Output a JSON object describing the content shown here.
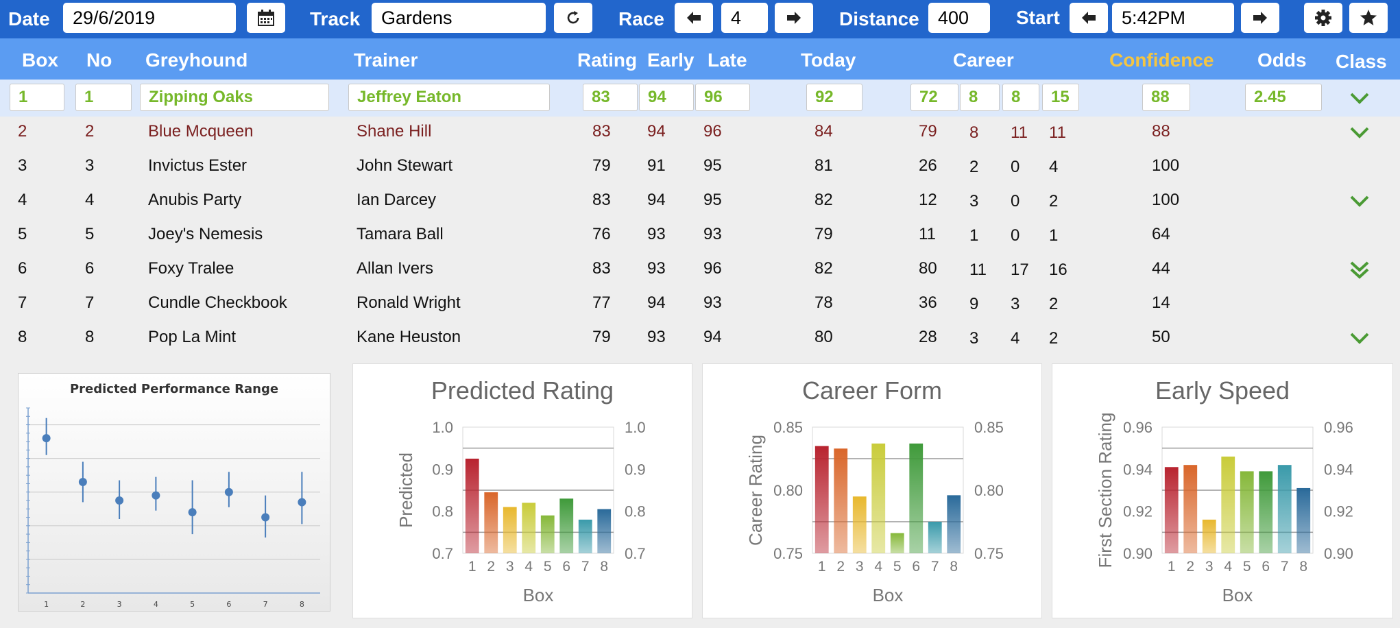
{
  "toolbar": {
    "date_label": "Date",
    "date_value": "29/6/2019",
    "track_label": "Track",
    "track_value": "Gardens",
    "race_label": "Race",
    "race_value": "4",
    "distance_label": "Distance",
    "distance_value": "400",
    "start_label": "Start",
    "start_value": "5:42PM",
    "icons": [
      "calendar-icon",
      "refresh-icon",
      "arrow-left-icon",
      "arrow-right-icon",
      "gear-icon",
      "star-icon"
    ]
  },
  "table": {
    "headers": {
      "box": "Box",
      "no": "No",
      "greyhound": "Greyhound",
      "trainer": "Trainer",
      "rating": "Rating",
      "early": "Early",
      "late": "Late",
      "today": "Today",
      "career": "Career",
      "confidence": "Confidence",
      "odds": "Odds",
      "class": "Class"
    },
    "colors": {
      "selected_text": "#76b82a",
      "highlight_text": "#7a1f1f",
      "confidence_header": "#f4c542",
      "class_icon": "#4a9a34"
    },
    "rows": [
      {
        "box": "1",
        "no": "1",
        "greyhound": "Zipping Oaks",
        "trainer": "Jeffrey Eaton",
        "rating": "83",
        "early": "94",
        "late": "96",
        "today": "92",
        "c1": "72",
        "c2": "8",
        "c3": "8",
        "c4": "15",
        "confidence": "88",
        "odds": "2.45",
        "class_icon": "chevron-down-icon"
      },
      {
        "box": "2",
        "no": "2",
        "greyhound": "Blue Mcqueen",
        "trainer": "Shane Hill",
        "rating": "83",
        "early": "94",
        "late": "96",
        "today": "84",
        "c1": "79",
        "c2": "8",
        "c3": "11",
        "c4": "11",
        "confidence": "88",
        "odds": "",
        "class_icon": "chevron-down-icon"
      },
      {
        "box": "3",
        "no": "3",
        "greyhound": "Invictus Ester",
        "trainer": "John Stewart",
        "rating": "79",
        "early": "91",
        "late": "95",
        "today": "81",
        "c1": "26",
        "c2": "2",
        "c3": "0",
        "c4": "4",
        "confidence": "100",
        "odds": "",
        "class_icon": ""
      },
      {
        "box": "4",
        "no": "4",
        "greyhound": "Anubis Party",
        "trainer": "Ian Darcey",
        "rating": "83",
        "early": "94",
        "late": "95",
        "today": "82",
        "c1": "12",
        "c2": "3",
        "c3": "0",
        "c4": "2",
        "confidence": "100",
        "odds": "",
        "class_icon": "chevron-down-icon"
      },
      {
        "box": "5",
        "no": "5",
        "greyhound": "Joey's Nemesis",
        "trainer": "Tamara Ball",
        "rating": "76",
        "early": "93",
        "late": "93",
        "today": "79",
        "c1": "11",
        "c2": "1",
        "c3": "0",
        "c4": "1",
        "confidence": "64",
        "odds": "",
        "class_icon": ""
      },
      {
        "box": "6",
        "no": "6",
        "greyhound": "Foxy Tralee",
        "trainer": "Allan Ivers",
        "rating": "83",
        "early": "93",
        "late": "96",
        "today": "82",
        "c1": "80",
        "c2": "11",
        "c3": "17",
        "c4": "16",
        "confidence": "44",
        "odds": "",
        "class_icon": "double-chevron-down-icon"
      },
      {
        "box": "7",
        "no": "7",
        "greyhound": "Cundle Checkbook",
        "trainer": "Ronald Wright",
        "rating": "77",
        "early": "94",
        "late": "93",
        "today": "78",
        "c1": "36",
        "c2": "9",
        "c3": "3",
        "c4": "2",
        "confidence": "14",
        "odds": "",
        "class_icon": ""
      },
      {
        "box": "8",
        "no": "8",
        "greyhound": "Pop La Mint",
        "trainer": "Kane Heuston",
        "rating": "79",
        "early": "93",
        "late": "94",
        "today": "80",
        "c1": "28",
        "c2": "3",
        "c3": "4",
        "c4": "2",
        "confidence": "50",
        "odds": "",
        "class_icon": "chevron-down-icon"
      }
    ]
  },
  "chart_data": [
    {
      "type": "scatter",
      "title": "Predicted Performance Range",
      "categories": [
        "1",
        "2",
        "3",
        "4",
        "5",
        "6",
        "7",
        "8"
      ],
      "values": [
        0.86,
        0.73,
        0.675,
        0.69,
        0.64,
        0.7,
        0.625,
        0.67
      ],
      "low": [
        0.81,
        0.67,
        0.62,
        0.645,
        0.575,
        0.655,
        0.565,
        0.605
      ],
      "high": [
        0.92,
        0.79,
        0.735,
        0.745,
        0.735,
        0.76,
        0.69,
        0.76
      ],
      "ylim": [
        0.4,
        0.95
      ],
      "color": "#4a7ebb"
    },
    {
      "type": "bar",
      "title": "Predicted Rating",
      "xlabel": "Box",
      "ylabel": "Predicted",
      "categories": [
        "1",
        "2",
        "3",
        "4",
        "5",
        "6",
        "7",
        "8"
      ],
      "values": [
        0.925,
        0.845,
        0.81,
        0.82,
        0.79,
        0.83,
        0.78,
        0.805
      ],
      "ylim": [
        0.7,
        1.0
      ],
      "yticks": [
        "0.7",
        "0.8",
        "0.9",
        "1.0"
      ],
      "tick_values": [
        0.7,
        0.8,
        0.9,
        1.0
      ],
      "gridlines": [
        0.75,
        0.85,
        0.95
      ]
    },
    {
      "type": "bar",
      "title": "Career Form",
      "xlabel": "Box",
      "ylabel": "Career Rating",
      "categories": [
        "1",
        "2",
        "3",
        "4",
        "5",
        "6",
        "7",
        "8"
      ],
      "values": [
        0.835,
        0.833,
        0.795,
        0.837,
        0.766,
        0.837,
        0.775,
        0.796
      ],
      "ylim": [
        0.75,
        0.85
      ],
      "yticks": [
        "0.75",
        "0.80",
        "0.85"
      ],
      "tick_values": [
        0.75,
        0.8,
        0.85
      ],
      "gridlines": [
        0.775,
        0.825
      ]
    },
    {
      "type": "bar",
      "title": "Early Speed",
      "xlabel": "Box",
      "ylabel": "First Section Rating",
      "categories": [
        "1",
        "2",
        "3",
        "4",
        "5",
        "6",
        "7",
        "8"
      ],
      "values": [
        0.941,
        0.942,
        0.916,
        0.946,
        0.939,
        0.939,
        0.942,
        0.931
      ],
      "ylim": [
        0.9,
        0.96
      ],
      "yticks": [
        "0.90",
        "0.92",
        "0.94",
        "0.96"
      ],
      "tick_values": [
        0.9,
        0.92,
        0.94,
        0.96
      ],
      "gridlines": [
        0.91,
        0.93,
        0.95
      ]
    }
  ],
  "bar_colors": [
    "#b8232f",
    "#d9662a",
    "#e8b82e",
    "#c9cc3a",
    "#86b83a",
    "#3f9a3a",
    "#3a9aaa",
    "#2a6a9a"
  ]
}
